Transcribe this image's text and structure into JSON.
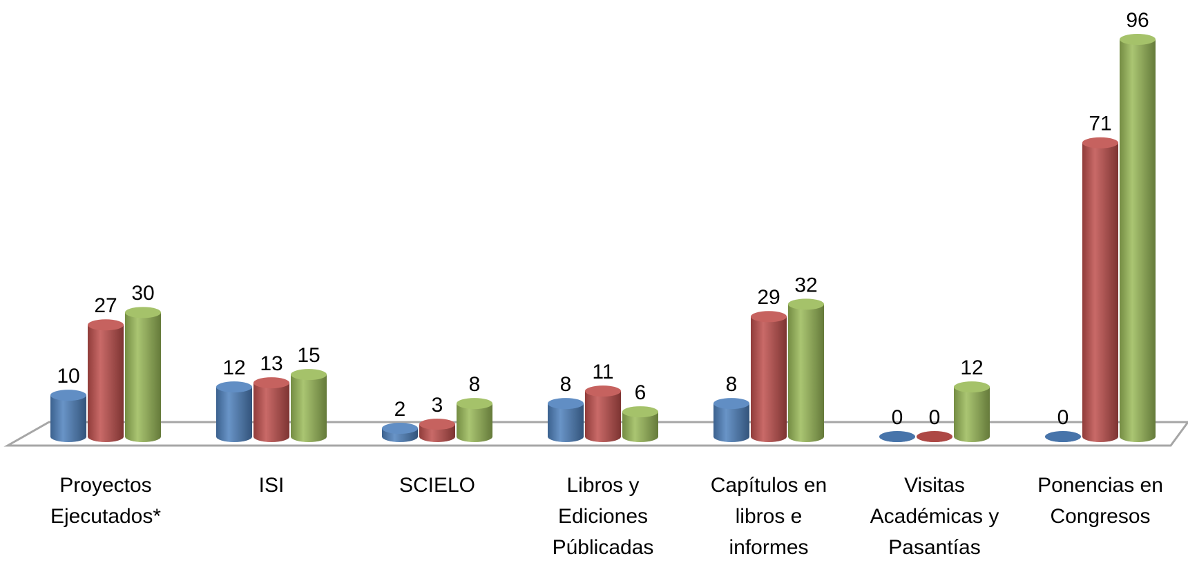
{
  "chart_data": {
    "type": "bar",
    "categories": [
      "Proyectos Ejecutados*",
      "ISI",
      "SCIELO",
      "Libros y Ediciones Públicadas",
      "Capítulos en libros e informes",
      "Visitas Académicas y Pasantías",
      "Ponencias en Congresos"
    ],
    "series": [
      {
        "color": "#4f81bd",
        "values": [
          10,
          12,
          2,
          8,
          8,
          0,
          0
        ]
      },
      {
        "color": "#c0504d",
        "values": [
          27,
          13,
          3,
          11,
          29,
          0,
          71
        ]
      },
      {
        "color": "#9bbb59",
        "values": [
          30,
          15,
          8,
          6,
          32,
          12,
          96
        ]
      }
    ]
  }
}
